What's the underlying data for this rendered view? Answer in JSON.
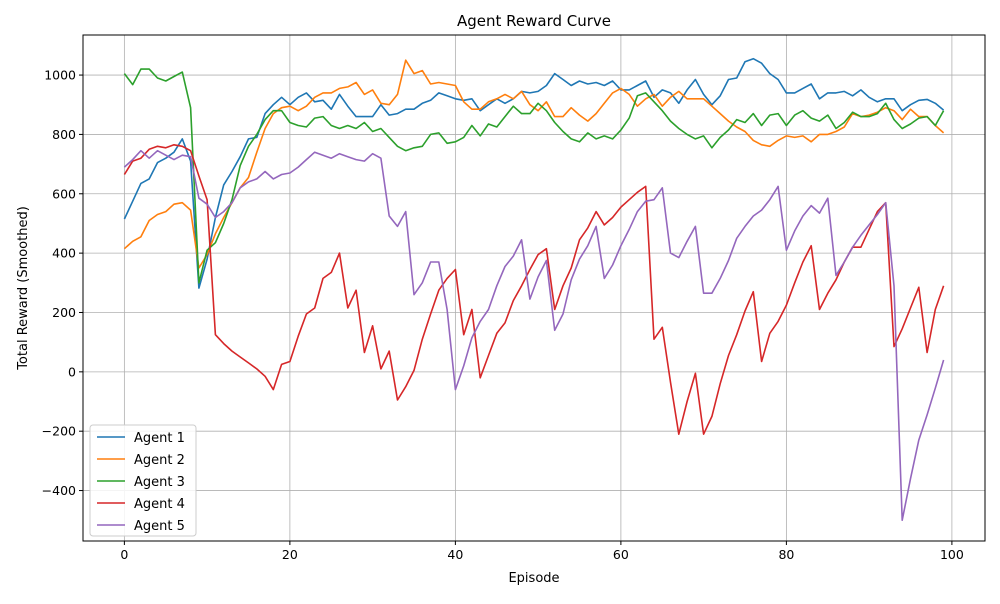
{
  "chart_data": {
    "type": "line",
    "title": "Agent Reward Curve",
    "xlabel": "Episode",
    "ylabel": "Total Reward (Smoothed)",
    "xlim": [
      -5,
      104
    ],
    "ylim": [
      -570,
      1135
    ],
    "xticks": [
      0,
      20,
      40,
      60,
      80,
      100
    ],
    "yticks": [
      -400,
      -200,
      0,
      200,
      400,
      600,
      800,
      1000
    ],
    "ytick_labels": [
      "−400",
      "−200",
      "0",
      "200",
      "400",
      "600",
      "800",
      "1000"
    ],
    "grid": true,
    "legend_position": "lower-left",
    "x": [
      0,
      1,
      2,
      3,
      4,
      5,
      6,
      7,
      8,
      9,
      10,
      11,
      12,
      13,
      14,
      15,
      16,
      17,
      18,
      19,
      20,
      21,
      22,
      23,
      24,
      25,
      26,
      27,
      28,
      29,
      30,
      31,
      32,
      33,
      34,
      35,
      36,
      37,
      38,
      39,
      40,
      41,
      42,
      43,
      44,
      45,
      46,
      47,
      48,
      49,
      50,
      51,
      52,
      53,
      54,
      55,
      56,
      57,
      58,
      59,
      60,
      61,
      62,
      63,
      64,
      65,
      66,
      67,
      68,
      69,
      70,
      71,
      72,
      73,
      74,
      75,
      76,
      77,
      78,
      79,
      80,
      81,
      82,
      83,
      84,
      85,
      86,
      87,
      88,
      89,
      90,
      91,
      92,
      93,
      94,
      95,
      96,
      97,
      98,
      99
    ],
    "series": [
      {
        "name": "Agent 1",
        "color": "#1f77b4",
        "values": [
          515,
          575,
          635,
          650,
          705,
          720,
          740,
          785,
          710,
          282,
          380,
          520,
          630,
          675,
          725,
          785,
          790,
          870,
          900,
          925,
          900,
          925,
          940,
          910,
          915,
          885,
          935,
          895,
          860,
          860,
          860,
          900,
          865,
          870,
          885,
          885,
          905,
          915,
          940,
          930,
          920,
          915,
          920,
          880,
          900,
          920,
          905,
          920,
          945,
          940,
          945,
          965,
          1005,
          985,
          965,
          980,
          970,
          975,
          965,
          980,
          950,
          950,
          965,
          980,
          925,
          950,
          940,
          905,
          950,
          985,
          935,
          900,
          930,
          985,
          990,
          1045,
          1055,
          1040,
          1005,
          985,
          940,
          940,
          955,
          970,
          920,
          940,
          940,
          945,
          930,
          950,
          925,
          910,
          920,
          920,
          880,
          900,
          915,
          918,
          905,
          882
        ]
      },
      {
        "name": "Agent 2",
        "color": "#ff7f0e",
        "values": [
          415,
          440,
          455,
          510,
          530,
          540,
          565,
          570,
          545,
          350,
          395,
          465,
          520,
          570,
          620,
          655,
          740,
          820,
          870,
          890,
          895,
          880,
          895,
          925,
          940,
          940,
          955,
          960,
          975,
          935,
          950,
          905,
          900,
          935,
          1050,
          1005,
          1015,
          970,
          975,
          970,
          965,
          910,
          885,
          885,
          910,
          920,
          935,
          920,
          945,
          900,
          880,
          910,
          860,
          860,
          890,
          865,
          845,
          870,
          905,
          940,
          955,
          935,
          895,
          920,
          935,
          895,
          925,
          945,
          920,
          920,
          920,
          895,
          870,
          845,
          825,
          810,
          780,
          765,
          760,
          780,
          795,
          790,
          795,
          775,
          800,
          800,
          810,
          825,
          870,
          860,
          865,
          875,
          890,
          880,
          850,
          885,
          860,
          860,
          830,
          805
        ]
      },
      {
        "name": "Agent 3",
        "color": "#2ca02c",
        "values": [
          1005,
          968,
          1020,
          1020,
          990,
          980,
          995,
          1010,
          890,
          300,
          410,
          435,
          500,
          580,
          695,
          760,
          800,
          850,
          880,
          880,
          840,
          830,
          825,
          855,
          860,
          830,
          820,
          830,
          820,
          840,
          810,
          820,
          790,
          760,
          745,
          755,
          760,
          800,
          805,
          770,
          775,
          790,
          830,
          795,
          835,
          825,
          860,
          895,
          870,
          870,
          905,
          880,
          840,
          810,
          785,
          775,
          805,
          785,
          795,
          785,
          815,
          855,
          930,
          940,
          910,
          880,
          845,
          820,
          800,
          785,
          795,
          755,
          790,
          815,
          850,
          840,
          870,
          830,
          865,
          870,
          830,
          865,
          880,
          855,
          845,
          865,
          820,
          840,
          875,
          860,
          860,
          870,
          905,
          850,
          820,
          835,
          855,
          860,
          830,
          880
        ]
      },
      {
        "name": "Agent 4",
        "color": "#d62728",
        "values": [
          665,
          710,
          720,
          750,
          760,
          755,
          765,
          760,
          745,
          660,
          580,
          125,
          95,
          70,
          50,
          30,
          10,
          -15,
          -60,
          25,
          35,
          120,
          195,
          215,
          315,
          335,
          400,
          215,
          275,
          65,
          155,
          10,
          70,
          -95,
          -50,
          5,
          110,
          195,
          275,
          315,
          345,
          125,
          210,
          -20,
          55,
          130,
          165,
          240,
          290,
          345,
          395,
          415,
          210,
          290,
          350,
          445,
          485,
          540,
          495,
          520,
          555,
          580,
          605,
          625,
          110,
          150,
          -35,
          -210,
          -100,
          -5,
          -210,
          -150,
          -40,
          55,
          125,
          205,
          270,
          35,
          130,
          170,
          225,
          300,
          370,
          425,
          210,
          265,
          310,
          370,
          420,
          420,
          480,
          540,
          570,
          85,
          145,
          215,
          285,
          65,
          210,
          290
        ]
      },
      {
        "name": "Agent 5",
        "color": "#9467bd",
        "values": [
          690,
          715,
          745,
          720,
          745,
          730,
          715,
          730,
          725,
          585,
          565,
          520,
          540,
          570,
          620,
          640,
          650,
          675,
          650,
          665,
          670,
          690,
          715,
          740,
          730,
          720,
          735,
          725,
          715,
          710,
          735,
          720,
          525,
          490,
          540,
          260,
          300,
          370,
          370,
          210,
          -60,
          20,
          115,
          170,
          210,
          290,
          355,
          390,
          445,
          245,
          320,
          375,
          140,
          195,
          310,
          380,
          425,
          490,
          315,
          360,
          425,
          480,
          540,
          575,
          580,
          620,
          400,
          385,
          440,
          490,
          265,
          265,
          315,
          375,
          450,
          490,
          525,
          545,
          580,
          625,
          410,
          475,
          525,
          560,
          535,
          585,
          325,
          370,
          420,
          460,
          495,
          530,
          570,
          290,
          -500,
          -360,
          -230,
          -145,
          -55,
          40
        ]
      }
    ]
  }
}
